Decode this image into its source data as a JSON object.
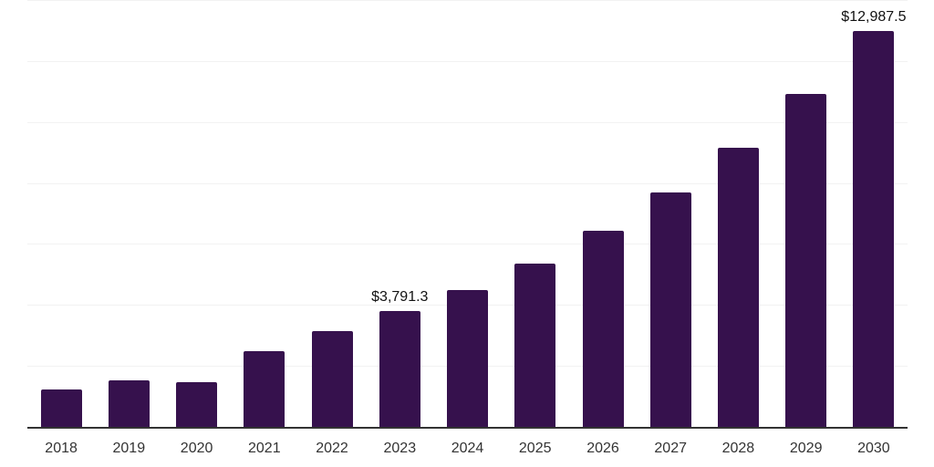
{
  "chart": {
    "background_color": "#ffffff",
    "bar_color": "#36114D",
    "grid_color": "#f2f2f2",
    "axis_color": "#333333",
    "tick_label_color": "#333333",
    "data_label_color": "#111111"
  },
  "chart_data": {
    "type": "bar",
    "categories": [
      "2018",
      "2019",
      "2020",
      "2021",
      "2022",
      "2023",
      "2024",
      "2025",
      "2026",
      "2027",
      "2028",
      "2029",
      "2030"
    ],
    "values": [
      1240,
      1530,
      1460,
      2480,
      3150,
      3791.3,
      4500,
      5360,
      6440,
      7700,
      9160,
      10920,
      12987.5
    ],
    "data_labels": [
      "",
      "",
      "",
      "",
      "",
      "$3,791.3",
      "",
      "",
      "",
      "",
      "",
      "",
      "$12,987.5"
    ],
    "title": "",
    "xlabel": "",
    "ylabel": "",
    "ylim": [
      0,
      14000
    ],
    "gridline_step": 2000,
    "grid": "horizontal",
    "y_axis_labels_visible": false,
    "legend": "none"
  }
}
